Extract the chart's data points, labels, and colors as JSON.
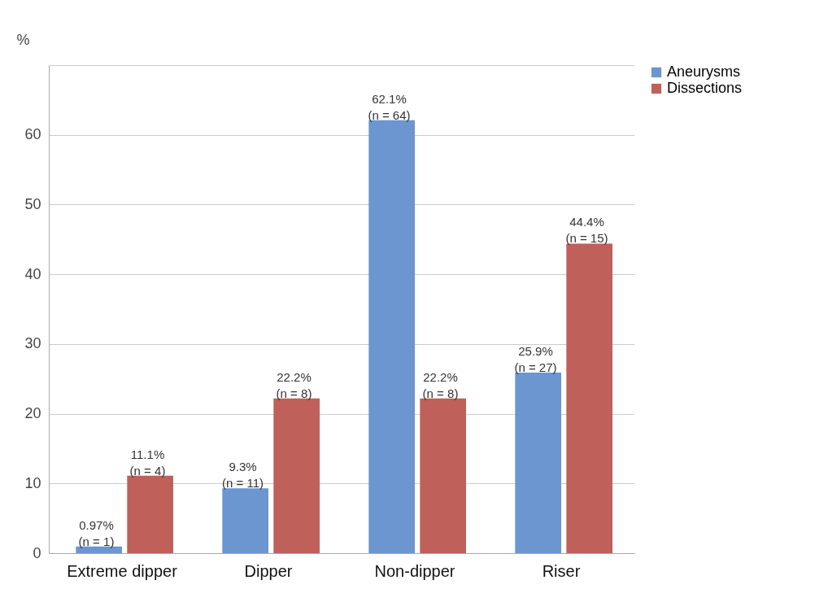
{
  "chart_data": {
    "type": "bar",
    "ylabel": "%",
    "categories": [
      "Extreme dipper",
      "Dipper",
      "Non-dipper",
      "Riser"
    ],
    "series": [
      {
        "name": "Aneurysms",
        "color": "#6b96cf",
        "values": [
          0.97,
          9.3,
          62.1,
          25.9
        ],
        "value_labels": [
          "0.97%\n(n = 1)",
          "9.3%\n(n = 11)",
          "62.1%\n(n = 64)",
          "25.9%\n(n = 27)"
        ]
      },
      {
        "name": "Dissections",
        "color": "#c0605a",
        "values": [
          11.1,
          22.2,
          22.2,
          44.4
        ],
        "value_labels": [
          "11.1%\n(n = 4)",
          "22.2%\n(n = 8)",
          "22.2%\n(n = 8)",
          "44.4%\n(n = 15)"
        ]
      }
    ],
    "ylim": [
      0,
      70
    ],
    "yticks": [
      0,
      10,
      20,
      30,
      40,
      50,
      60,
      {
        "value": 70,
        "label": null
      }
    ],
    "grid": "y",
    "legend": "right"
  }
}
